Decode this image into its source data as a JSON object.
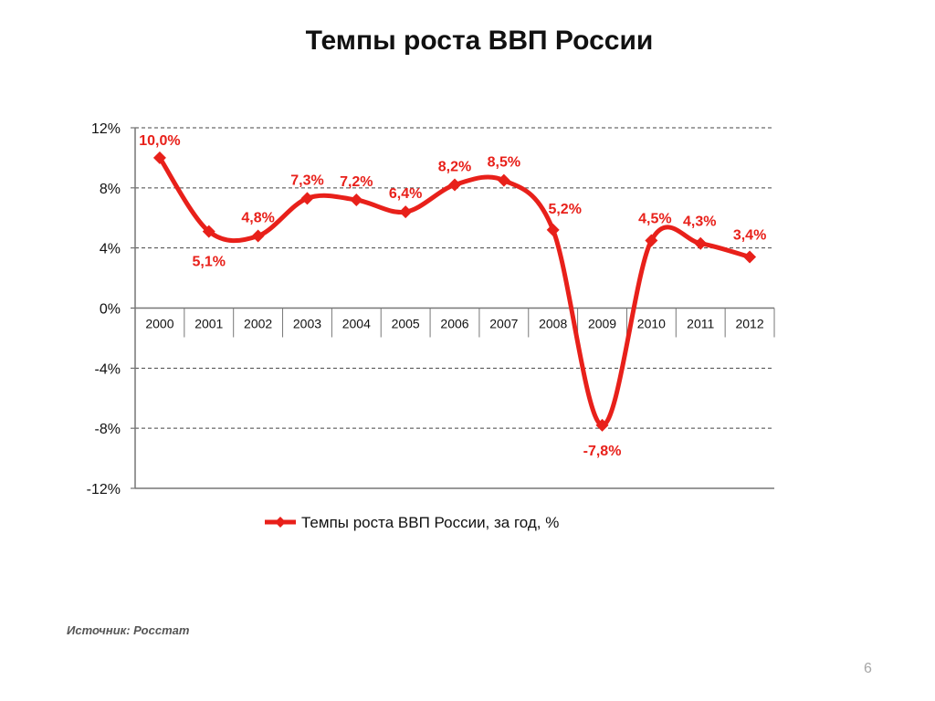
{
  "slide": {
    "title": "Темпы роста ВВП России",
    "source": "Источник: Росстат",
    "page_number": "6"
  },
  "chart_data": {
    "type": "line",
    "title": "Темпы роста ВВП России",
    "xlabel": "",
    "ylabel": "",
    "categories": [
      "2000",
      "2001",
      "2002",
      "2003",
      "2004",
      "2005",
      "2006",
      "2007",
      "2008",
      "2009",
      "2010",
      "2011",
      "2012"
    ],
    "series": [
      {
        "name": "Темпы роста ВВП России, за год, %",
        "values": [
          10.0,
          5.1,
          4.8,
          7.3,
          7.2,
          6.4,
          8.2,
          8.5,
          5.2,
          -7.8,
          4.5,
          4.3,
          3.4
        ],
        "labels": [
          "10,0%",
          "5,1%",
          "4,8%",
          "7,3%",
          "7,2%",
          "6,4%",
          "8,2%",
          "8,5%",
          "5,2%",
          "-7,8%",
          "4,5%",
          "4,3%",
          "3,4%"
        ],
        "color": "#e8201a"
      }
    ],
    "yticks": [
      12,
      8,
      4,
      0,
      -4,
      -8,
      -12
    ],
    "ytick_labels": [
      "12%",
      "8%",
      "4%",
      "0%",
      "-4%",
      "-8%",
      "-12%"
    ],
    "ylim": [
      -12,
      12
    ],
    "grid": true,
    "legend": "bottom",
    "smooth": true
  }
}
